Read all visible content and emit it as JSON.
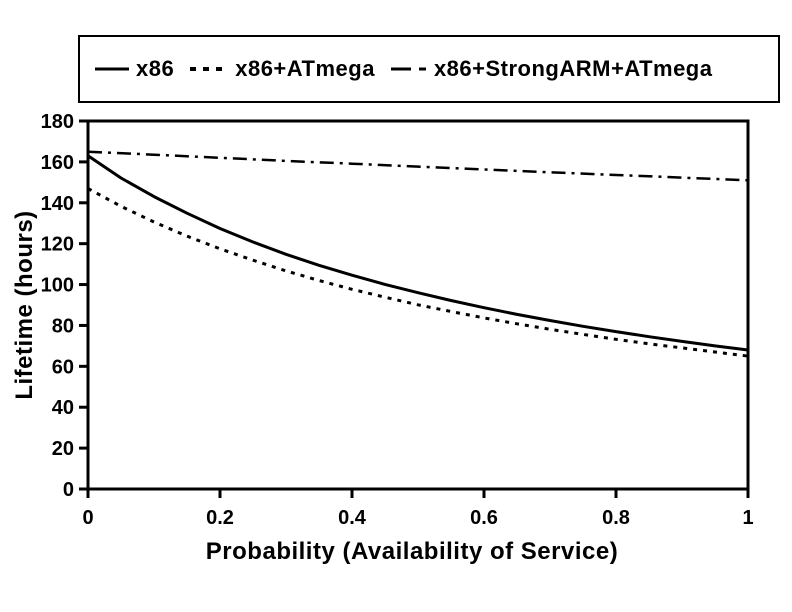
{
  "legend": {
    "items": [
      {
        "label": "x86",
        "style": "solid"
      },
      {
        "label": "x86+ATmega",
        "style": "dotted"
      },
      {
        "label": "x86+StrongARM+ATmega",
        "style": "dashdot"
      }
    ]
  },
  "chart_data": {
    "type": "line",
    "title": "",
    "xlabel": "Probability (Availability of Service)",
    "ylabel": "Lifetime (hours)",
    "xlim": [
      0,
      1
    ],
    "ylim": [
      0,
      180
    ],
    "x_ticks": [
      0,
      0.2,
      0.4,
      0.6,
      0.8,
      1
    ],
    "x_tick_labels": [
      "0",
      "0.2",
      "0.4",
      "0.6",
      "0.8",
      "1"
    ],
    "y_ticks": [
      0,
      20,
      40,
      60,
      80,
      100,
      120,
      140,
      160,
      180
    ],
    "y_tick_labels": [
      "0",
      "20",
      "40",
      "60",
      "80",
      "100",
      "120",
      "140",
      "160",
      "180"
    ],
    "grid": false,
    "legend_position": "top",
    "colors": {
      "line": "#000000",
      "background": "#ffffff"
    },
    "series": [
      {
        "name": "x86",
        "style": "solid",
        "x": [
          0,
          0.05,
          0.1,
          0.15,
          0.2,
          0.25,
          0.3,
          0.35,
          0.4,
          0.45,
          0.5,
          0.55,
          0.6,
          0.65,
          0.7,
          0.75,
          0.8,
          0.85,
          0.9,
          0.95,
          1
        ],
        "y": [
          163,
          152.1,
          143,
          134.9,
          127.4,
          120.8,
          114.8,
          109.4,
          104.6,
          100.1,
          96,
          92.2,
          88.7,
          85.4,
          82.4,
          79.6,
          77,
          74.5,
          72.2,
          70,
          68
        ]
      },
      {
        "name": "x86+ATmega",
        "style": "dotted",
        "x": [
          0,
          0.05,
          0.1,
          0.15,
          0.2,
          0.25,
          0.3,
          0.35,
          0.4,
          0.45,
          0.5,
          0.55,
          0.6,
          0.65,
          0.7,
          0.75,
          0.8,
          0.85,
          0.9,
          0.95,
          1
        ],
        "y": [
          147,
          138.3,
          130.6,
          123.7,
          117.5,
          111.9,
          106.7,
          102,
          97.7,
          93.8,
          90.1,
          86.8,
          83.7,
          80.8,
          78.1,
          75.6,
          73.2,
          71,
          69,
          67,
          65
        ]
      },
      {
        "name": "x86+StrongARM+ATmega",
        "style": "dashdot",
        "x": [
          0,
          0.1,
          0.2,
          0.3,
          0.4,
          0.5,
          0.6,
          0.7,
          0.8,
          0.9,
          1
        ],
        "y": [
          165,
          163.5,
          162,
          160.5,
          159.1,
          157.7,
          156.3,
          154.9,
          153.6,
          152.3,
          151
        ]
      }
    ]
  }
}
